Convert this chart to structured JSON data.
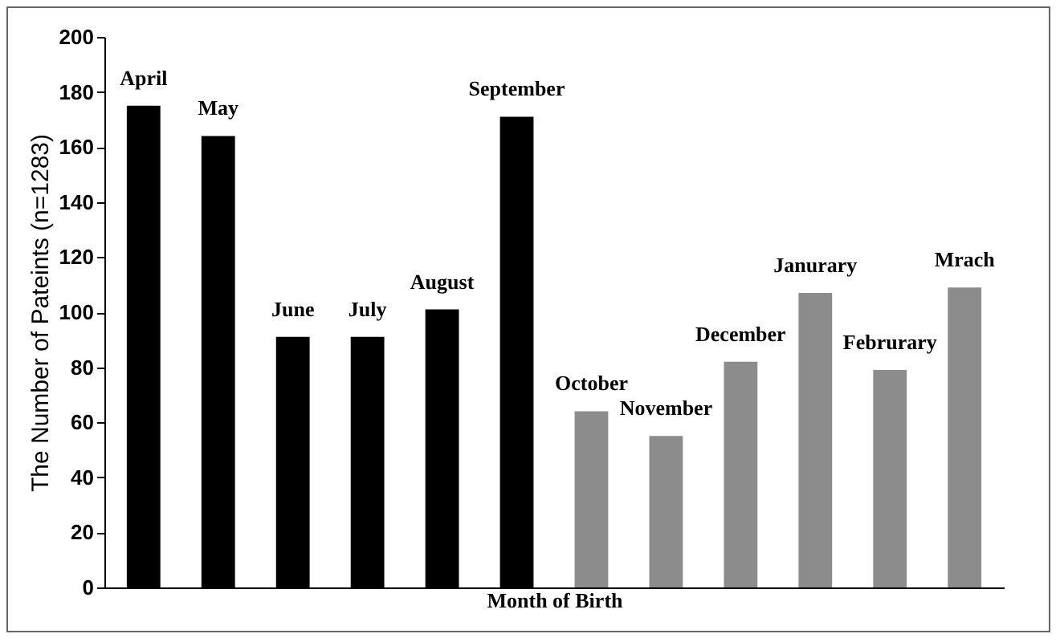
{
  "chart_data": {
    "type": "bar",
    "xlabel": "Month of Birth",
    "ylabel": "The Number of Pateints (n=1283)",
    "categories": [
      "April",
      "May",
      "June",
      "July",
      "August",
      "September",
      "October",
      "November",
      "December",
      "Janurary",
      "Februrary",
      "Mrach"
    ],
    "values": [
      175,
      164,
      91,
      91,
      101,
      171,
      64,
      55,
      82,
      107,
      79,
      109
    ],
    "colors": [
      "#000000",
      "#000000",
      "#000000",
      "#000000",
      "#000000",
      "#000000",
      "#8c8c8c",
      "#8c8c8c",
      "#8c8c8c",
      "#8c8c8c",
      "#8c8c8c",
      "#8c8c8c"
    ],
    "ylim": [
      0,
      200
    ],
    "yticks": [
      0,
      20,
      40,
      60,
      80,
      100,
      120,
      140,
      160,
      180,
      200
    ],
    "grid": false,
    "tick_labels": "y"
  }
}
